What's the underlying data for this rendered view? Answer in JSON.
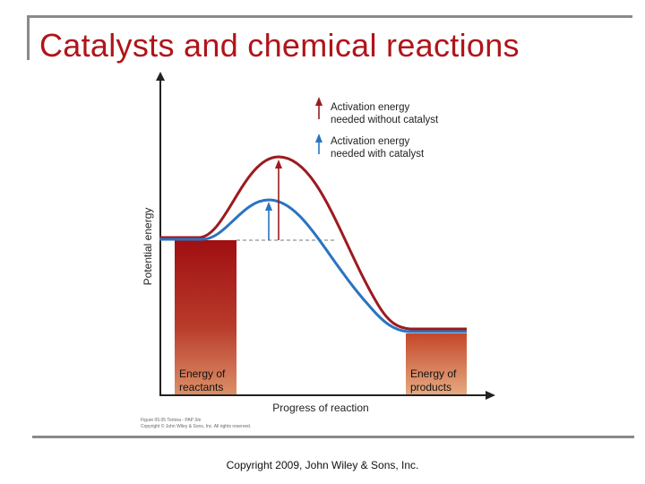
{
  "slide": {
    "title": "Catalysts and chemical reactions",
    "copyright": "Copyright 2009, John Wiley & Sons, Inc."
  },
  "diagram": {
    "y_axis_label": "Potential energy",
    "x_axis_label": "Progress of reaction",
    "legend": {
      "without_catalyst_line1": "Activation energy",
      "without_catalyst_line2": "needed without catalyst",
      "with_catalyst_line1": "Activation energy",
      "with_catalyst_line2": "needed with catalyst"
    },
    "reactants_label_line1": "Energy of",
    "reactants_label_line2": "reactants",
    "products_label_line1": "Energy of",
    "products_label_line2": "products",
    "figure_credit_line1": "Figure 05.05 Tortora - PAP 3/e",
    "figure_credit_line2": "Copyright © John Wiley & Sons, Inc. All rights reserved.",
    "colors": {
      "without_catalyst": "#9b1b1f",
      "with_catalyst": "#2a73c1",
      "reactants_bar_top": "#a00f12",
      "reactants_bar_bottom": "#d98a63",
      "products_bar_top": "#c4472a",
      "products_bar_bottom": "#e2a37a"
    }
  }
}
